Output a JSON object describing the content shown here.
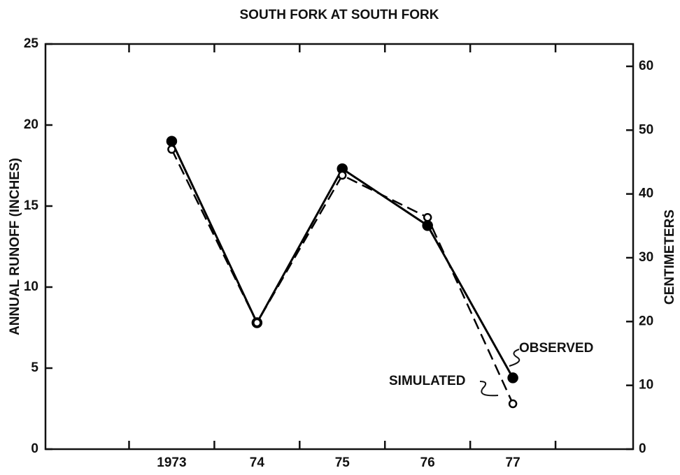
{
  "chart_data": {
    "type": "line",
    "title": "SOUTH FORK AT SOUTH FORK",
    "ylabel": "ANNUAL RUNOFF (INCHES)",
    "y2label": "CENTIMETERS",
    "x": [
      1973,
      1974,
      1975,
      1976,
      1977
    ],
    "xlim": [
      1971.52,
      1978.41
    ],
    "xticks": [
      {
        "value": 1973,
        "label": "1973"
      },
      {
        "value": 1974,
        "label": "74"
      },
      {
        "value": 1975,
        "label": "75"
      },
      {
        "value": 1976,
        "label": "76"
      },
      {
        "value": 1977,
        "label": "77"
      }
    ],
    "xminorticks": [
      1972.5,
      1973.5,
      1974.5,
      1975.5,
      1976.5,
      1977.5
    ],
    "ylim": [
      0,
      25
    ],
    "yticks": [
      0,
      5,
      10,
      15,
      20,
      25
    ],
    "y2lim": [
      0,
      63.5
    ],
    "y2ticks": [
      0,
      10,
      20,
      30,
      40,
      50,
      60
    ],
    "series": [
      {
        "name": "OBSERVED",
        "color": "#000000",
        "marker": "filled",
        "dash": false,
        "values": [
          19.0,
          7.8,
          17.3,
          13.8,
          4.4
        ]
      },
      {
        "name": "SIMULATED",
        "color": "#000000",
        "marker": "open",
        "dash": true,
        "values": [
          18.5,
          7.8,
          16.9,
          14.3,
          2.8
        ]
      }
    ]
  }
}
